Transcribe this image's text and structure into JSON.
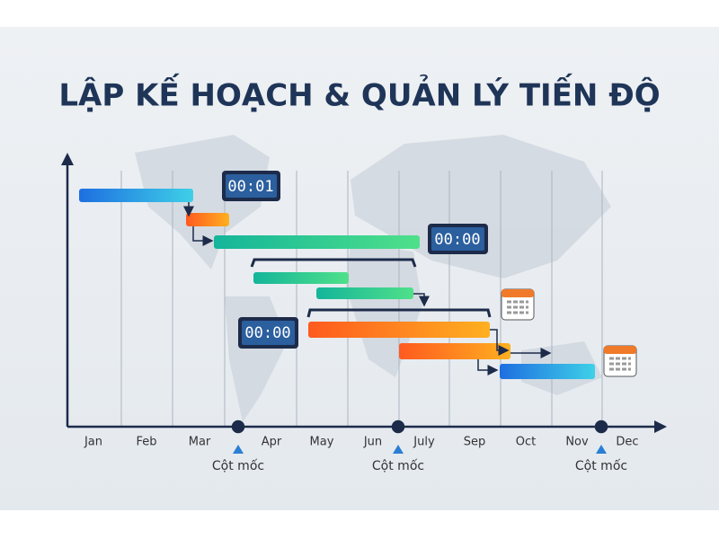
{
  "header": {
    "title": "LẬP KẾ HOẠCH & QUẢN LÝ TIẾN ĐỘ"
  },
  "timeline": {
    "months": [
      "Jan",
      "Feb",
      "Mar",
      "Apr",
      "May",
      "Jun",
      "July",
      "Sep",
      "Oct",
      "Nov",
      "Dec"
    ],
    "milestones": [
      {
        "label": "Cột mốc"
      },
      {
        "label": "Cột mốc"
      },
      {
        "label": "Cột mốc"
      }
    ]
  },
  "clocks": [
    {
      "time": "00:01"
    },
    {
      "time": "00:00"
    },
    {
      "time": "00:00"
    }
  ]
}
